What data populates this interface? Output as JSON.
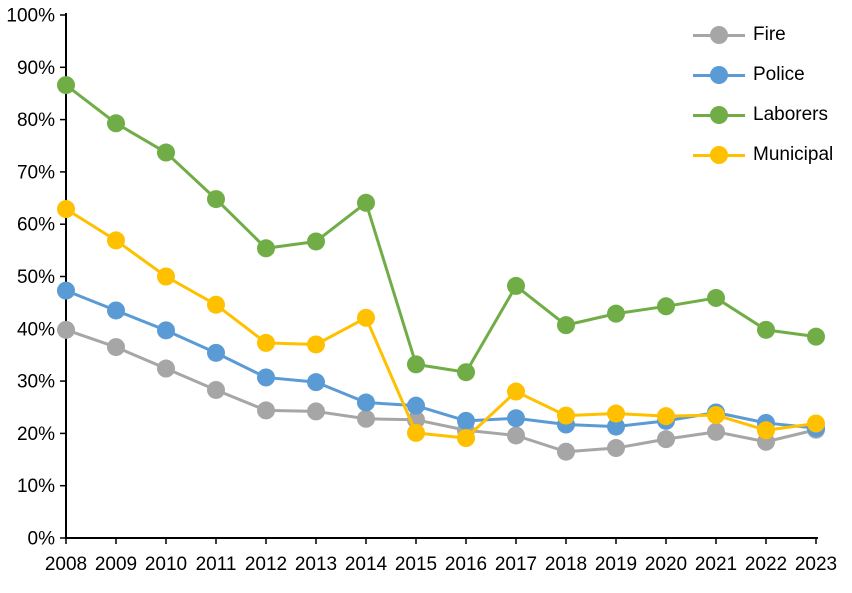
{
  "chart_data": {
    "type": "line",
    "title": "",
    "xlabel": "",
    "ylabel": "",
    "categories": [
      "2008",
      "2009",
      "2010",
      "2011",
      "2012",
      "2013",
      "2014",
      "2015",
      "2016",
      "2017",
      "2018",
      "2019",
      "2020",
      "2021",
      "2022",
      "2023"
    ],
    "y_ticks": [
      "0%",
      "10%",
      "20%",
      "30%",
      "40%",
      "50%",
      "60%",
      "70%",
      "80%",
      "90%",
      "100%"
    ],
    "ylim": [
      0,
      100
    ],
    "grid": false,
    "legend_position": "inside-top-right",
    "axis_color": "#000000",
    "background_color": "#ffffff",
    "marker_style": "filled-circle",
    "series": [
      {
        "name": "Fire",
        "color": "#A6A6A6",
        "values": [
          39.8,
          36.5,
          32.4,
          28.3,
          24.4,
          24.2,
          22.8,
          22.6,
          20.6,
          19.6,
          16.5,
          17.2,
          18.9,
          20.3,
          18.4,
          20.7
        ]
      },
      {
        "name": "Police",
        "color": "#5B9BD5",
        "values": [
          47.3,
          43.5,
          39.7,
          35.4,
          30.7,
          29.8,
          25.9,
          25.3,
          22.4,
          22.9,
          21.7,
          21.3,
          22.4,
          24.0,
          22.0,
          21.0
        ]
      },
      {
        "name": "Laborers",
        "color": "#70AD47",
        "values": [
          86.6,
          79.3,
          73.7,
          64.8,
          55.4,
          56.7,
          64.1,
          33.2,
          31.7,
          48.2,
          40.7,
          42.9,
          44.3,
          45.9,
          39.8,
          38.5
        ]
      },
      {
        "name": "Municipal",
        "color": "#FFC000",
        "values": [
          62.9,
          56.9,
          50.0,
          44.6,
          37.3,
          37.0,
          42.1,
          20.1,
          19.1,
          28.0,
          23.4,
          23.8,
          23.3,
          23.5,
          20.6,
          21.9
        ]
      }
    ]
  }
}
